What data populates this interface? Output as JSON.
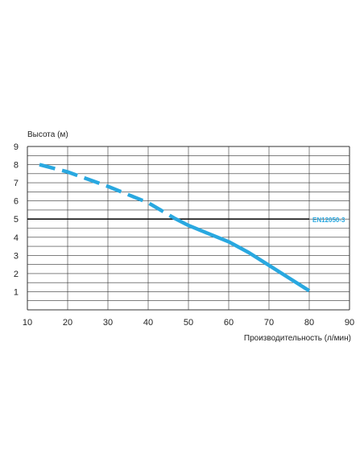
{
  "chart_data": {
    "type": "line",
    "ylabel": "Высота (м)",
    "xlabel": "Производительность (л/мин)",
    "xlim": [
      10,
      90
    ],
    "ylim": [
      0,
      9
    ],
    "xticks": [
      10,
      20,
      30,
      40,
      50,
      60,
      70,
      80,
      90
    ],
    "yticks": [
      1,
      2,
      3,
      4,
      5,
      6,
      7,
      8,
      9
    ],
    "grid": true,
    "colors": {
      "curve": "#29a8e0",
      "grid": "#333333",
      "reference": "#111111",
      "reference_label": "#29a8e0"
    },
    "reference_line": {
      "y": 5,
      "label": "EN12050-3"
    },
    "series": [
      {
        "style": "dashed",
        "x": [
          13,
          20,
          30,
          40,
          46.5
        ],
        "y": [
          8.0,
          7.6,
          6.8,
          5.9,
          5.05
        ]
      },
      {
        "style": "solid",
        "x": [
          46.5,
          50,
          55,
          60,
          65,
          70,
          75,
          80
        ],
        "y": [
          5.05,
          4.65,
          4.2,
          3.75,
          3.15,
          2.45,
          1.75,
          1.05
        ]
      }
    ]
  }
}
